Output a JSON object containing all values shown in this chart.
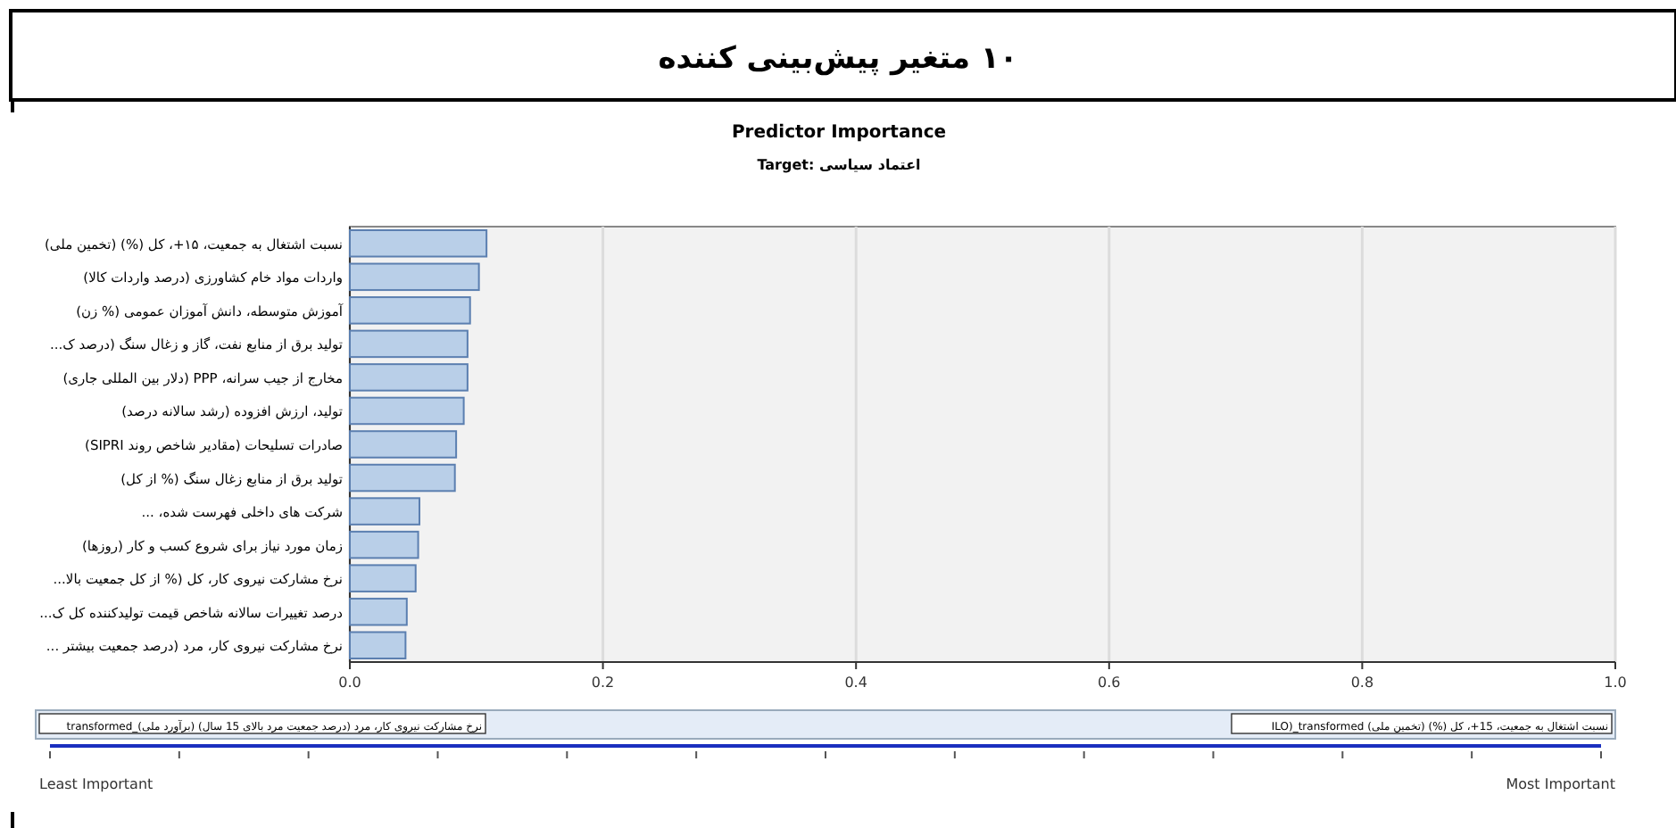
{
  "chart_data": {
    "type": "bar",
    "orientation": "horizontal",
    "title": "۱۰ متغیر پیش‌بینی کننده",
    "subtitle": "Predictor Importance",
    "annotations": [
      "Target: اعتماد سیاسی",
      "نرخ مشارکت نیروی کار، مرد (درصد جمعیت مرد بالای 15 سال) (برآورد ملی)_transformed",
      "نسبت اشتغال به جمعیت، 15+، کل (%) (تخمین ملی) ILO)_transformed",
      "Least Important",
      "Most Important"
    ],
    "categories": [
      "نسبت اشتغال به جمعیت، ۱۵+، کل (%) (تخمین ملی)",
      "واردات مواد خام کشاورزی (درصد واردات کالا)",
      "آموزش متوسطه، دانش آموزان عمومی (% زن)",
      "تولید برق از منابع نفت، گاز و زغال سنگ (درصد ک...",
      "مخارج از جیب سرانه، PPP (دلار بین المللی جاری)",
      "تولید، ارزش افزوده (رشد سالانه درصد)",
      "صادرات تسلیحات (مقادیر شاخص روند SIPRI)",
      "تولید برق از منابع زغال سنگ (% از کل)",
      "شرکت های داخلی فهرست شده، ...",
      "زمان مورد نیاز برای شروع کسب و کار (روزها)",
      "نرخ مشارکت نیروی کار، کل (% از کل جمعیت بالا...",
      "درصد تغییرات سالانه شاخص قیمت تولیدکننده کل ک...",
      "نرخ مشارکت نیروی کار، مرد (درصد جمعیت بیشتر ..."
    ],
    "values": [
      0.108,
      0.102,
      0.095,
      0.093,
      0.093,
      0.09,
      0.084,
      0.083,
      0.055,
      0.054,
      0.052,
      0.045,
      0.044
    ],
    "color": "#b9cfe8",
    "xlim": [
      0,
      1
    ],
    "xticks": [
      {
        "value": 0,
        "label": "0.0"
      },
      {
        "value": 0.2,
        "label": "0.2"
      },
      {
        "value": 0.4,
        "label": "0.4"
      },
      {
        "value": 0.6,
        "label": "0.6"
      },
      {
        "value": 0.8,
        "label": "0.8"
      },
      {
        "value": 1,
        "label": "1.0"
      }
    ],
    "grid": "x"
  }
}
